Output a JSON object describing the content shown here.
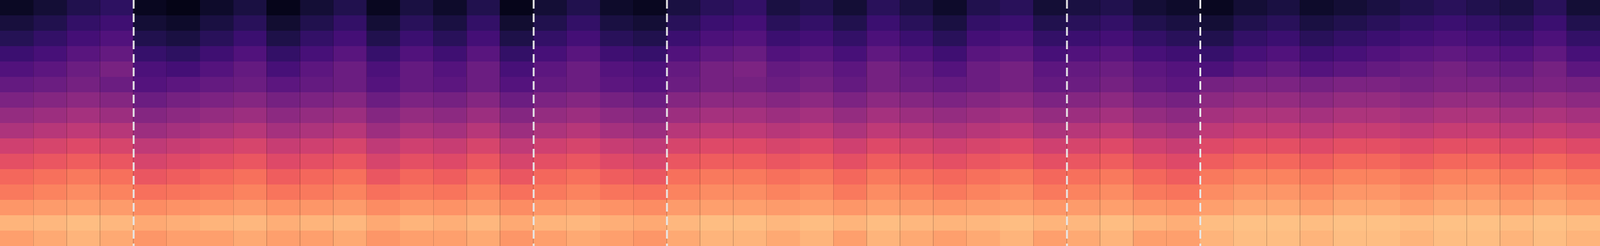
{
  "chart_data": {
    "type": "heatmap",
    "xlim": [
      0,
      48
    ],
    "ylim": [
      0,
      16
    ],
    "tick_labels": false,
    "color": "magma",
    "color_range": [
      0,
      100
    ],
    "boundaries": [
      4,
      16,
      20,
      32,
      36
    ],
    "cells": [
      [
        80,
        82,
        84,
        82,
        78,
        80,
        80,
        82,
        80,
        80,
        82,
        78,
        80,
        80,
        82,
        78,
        80,
        82,
        80,
        78,
        82,
        84,
        84,
        82,
        84,
        80,
        84,
        82,
        80,
        82,
        84,
        80,
        82,
        84,
        80,
        80,
        84,
        86,
        86,
        84,
        86,
        86,
        84,
        86,
        86,
        84,
        86,
        84
      ],
      [
        84,
        85,
        86,
        85,
        82,
        83,
        84,
        85,
        83,
        84,
        85,
        82,
        84,
        83,
        85,
        82,
        84,
        85,
        83,
        82,
        85,
        86,
        86,
        85,
        86,
        84,
        86,
        85,
        84,
        85,
        86,
        84,
        85,
        86,
        84,
        83,
        86,
        87,
        87,
        86,
        87,
        87,
        86,
        87,
        87,
        86,
        87,
        86
      ],
      [
        78,
        79,
        80,
        79,
        76,
        77,
        78,
        79,
        77,
        78,
        79,
        76,
        78,
        77,
        79,
        76,
        78,
        79,
        77,
        76,
        79,
        80,
        80,
        79,
        80,
        78,
        80,
        79,
        78,
        79,
        80,
        78,
        79,
        80,
        78,
        77,
        80,
        82,
        82,
        80,
        82,
        82,
        80,
        82,
        82,
        80,
        82,
        80
      ],
      [
        72,
        74,
        76,
        74,
        70,
        71,
        72,
        74,
        71,
        72,
        74,
        70,
        72,
        71,
        74,
        70,
        72,
        74,
        71,
        70,
        74,
        76,
        76,
        74,
        76,
        72,
        76,
        74,
        72,
        74,
        76,
        72,
        74,
        76,
        72,
        71,
        76,
        78,
        78,
        76,
        78,
        78,
        76,
        78,
        78,
        76,
        78,
        76
      ],
      [
        68,
        70,
        72,
        70,
        64,
        66,
        68,
        70,
        66,
        68,
        70,
        64,
        68,
        66,
        70,
        64,
        68,
        70,
        66,
        64,
        70,
        72,
        72,
        70,
        72,
        68,
        72,
        70,
        68,
        70,
        72,
        68,
        70,
        72,
        68,
        66,
        72,
        74,
        74,
        72,
        74,
        74,
        72,
        74,
        74,
        72,
        74,
        72
      ],
      [
        62,
        64,
        66,
        64,
        58,
        60,
        62,
        64,
        60,
        62,
        64,
        58,
        62,
        60,
        64,
        58,
        62,
        64,
        60,
        58,
        64,
        66,
        66,
        64,
        66,
        62,
        66,
        64,
        62,
        64,
        66,
        62,
        64,
        66,
        62,
        60,
        66,
        68,
        68,
        66,
        68,
        68,
        66,
        68,
        68,
        66,
        68,
        66
      ],
      [
        56,
        58,
        60,
        58,
        52,
        54,
        56,
        58,
        54,
        56,
        58,
        52,
        56,
        54,
        58,
        52,
        56,
        58,
        54,
        52,
        58,
        60,
        60,
        58,
        60,
        56,
        60,
        58,
        56,
        58,
        60,
        56,
        58,
        60,
        56,
        54,
        60,
        62,
        62,
        60,
        62,
        62,
        60,
        62,
        62,
        60,
        62,
        60
      ],
      [
        48,
        50,
        52,
        50,
        44,
        46,
        48,
        50,
        46,
        48,
        50,
        44,
        48,
        46,
        50,
        44,
        48,
        50,
        46,
        44,
        50,
        52,
        52,
        50,
        52,
        48,
        52,
        50,
        48,
        50,
        52,
        48,
        50,
        52,
        48,
        46,
        52,
        54,
        54,
        52,
        54,
        54,
        52,
        54,
        54,
        52,
        54,
        52
      ],
      [
        42,
        44,
        46,
        44,
        38,
        40,
        42,
        44,
        40,
        42,
        44,
        38,
        42,
        40,
        44,
        38,
        42,
        44,
        40,
        38,
        44,
        46,
        46,
        44,
        46,
        42,
        46,
        44,
        42,
        44,
        46,
        42,
        44,
        46,
        42,
        40,
        46,
        48,
        48,
        46,
        48,
        48,
        46,
        48,
        48,
        46,
        48,
        46
      ],
      [
        36,
        38,
        40,
        38,
        32,
        34,
        36,
        38,
        34,
        36,
        38,
        32,
        36,
        34,
        38,
        32,
        36,
        38,
        34,
        32,
        38,
        40,
        40,
        38,
        40,
        36,
        40,
        38,
        36,
        38,
        40,
        36,
        38,
        40,
        36,
        34,
        40,
        42,
        42,
        40,
        42,
        42,
        40,
        42,
        42,
        40,
        42,
        40
      ],
      [
        30,
        32,
        34,
        32,
        26,
        28,
        30,
        32,
        28,
        30,
        32,
        26,
        30,
        28,
        32,
        26,
        30,
        32,
        28,
        26,
        32,
        34,
        34,
        32,
        34,
        30,
        34,
        32,
        30,
        32,
        34,
        30,
        32,
        34,
        30,
        28,
        34,
        36,
        36,
        34,
        36,
        36,
        34,
        36,
        36,
        34,
        36,
        34
      ],
      [
        25,
        28,
        32,
        35,
        24,
        22,
        26,
        30,
        23,
        28,
        32,
        24,
        30,
        26,
        32,
        23,
        28,
        32,
        26,
        24,
        30,
        34,
        36,
        30,
        32,
        28,
        34,
        30,
        26,
        32,
        34,
        28,
        30,
        32,
        28,
        26,
        24,
        28,
        30,
        26,
        28,
        30,
        32,
        34,
        32,
        30,
        34,
        28
      ],
      [
        20,
        23,
        27,
        30,
        19,
        17,
        21,
        25,
        18,
        23,
        27,
        19,
        25,
        21,
        27,
        18,
        23,
        27,
        21,
        19,
        25,
        29,
        31,
        25,
        27,
        23,
        29,
        25,
        21,
        27,
        29,
        23,
        25,
        27,
        23,
        21,
        19,
        23,
        25,
        21,
        23,
        25,
        27,
        29,
        27,
        25,
        29,
        23
      ],
      [
        15,
        18,
        22,
        25,
        14,
        12,
        16,
        20,
        13,
        18,
        22,
        14,
        20,
        16,
        22,
        13,
        18,
        22,
        16,
        14,
        20,
        24,
        26,
        20,
        22,
        18,
        24,
        20,
        16,
        22,
        24,
        18,
        20,
        22,
        18,
        16,
        14,
        18,
        20,
        16,
        18,
        20,
        22,
        24,
        22,
        20,
        24,
        18
      ],
      [
        11,
        14,
        18,
        21,
        10,
        8,
        12,
        16,
        9,
        14,
        18,
        10,
        16,
        12,
        18,
        9,
        14,
        18,
        12,
        10,
        16,
        20,
        22,
        16,
        18,
        14,
        20,
        16,
        12,
        18,
        20,
        14,
        16,
        18,
        14,
        12,
        10,
        14,
        16,
        12,
        14,
        16,
        18,
        20,
        18,
        16,
        20,
        14
      ],
      [
        7,
        10,
        14,
        17,
        6,
        4,
        8,
        12,
        5,
        10,
        14,
        6,
        12,
        8,
        14,
        5,
        10,
        14,
        8,
        6,
        12,
        16,
        18,
        12,
        14,
        10,
        16,
        12,
        8,
        14,
        16,
        10,
        12,
        14,
        10,
        8,
        6,
        10,
        12,
        8,
        10,
        12,
        14,
        16,
        14,
        12,
        16,
        10
      ]
    ]
  }
}
